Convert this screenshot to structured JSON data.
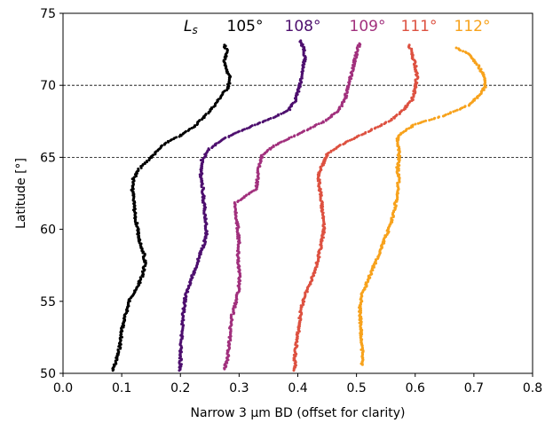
{
  "chart_data": {
    "type": "scatter",
    "xlabel": "Narrow 3 µm BD (offset for clarity)",
    "ylabel": "Latitude [°]",
    "xlim": [
      0.0,
      0.8
    ],
    "ylim": [
      50,
      75
    ],
    "x_ticks": [
      "0.0",
      "0.1",
      "0.2",
      "0.3",
      "0.4",
      "0.5",
      "0.6",
      "0.7",
      "0.8"
    ],
    "y_ticks": [
      "50",
      "55",
      "60",
      "65",
      "70",
      "75"
    ],
    "reference_lines": [
      65,
      70
    ],
    "legend_prefix": "Ls",
    "series": [
      {
        "name": "105°",
        "color": "#000000",
        "points": [
          [
            0.085,
            50.2
          ],
          [
            0.09,
            50.8
          ],
          [
            0.095,
            51.5
          ],
          [
            0.098,
            52.3
          ],
          [
            0.1,
            53.0
          ],
          [
            0.105,
            53.8
          ],
          [
            0.11,
            54.6
          ],
          [
            0.115,
            55.3
          ],
          [
            0.125,
            55.8
          ],
          [
            0.13,
            56.3
          ],
          [
            0.135,
            56.8
          ],
          [
            0.14,
            57.6
          ],
          [
            0.138,
            58.3
          ],
          [
            0.132,
            59.0
          ],
          [
            0.128,
            59.8
          ],
          [
            0.125,
            60.5
          ],
          [
            0.122,
            61.2
          ],
          [
            0.12,
            62.0
          ],
          [
            0.118,
            62.8
          ],
          [
            0.12,
            63.5
          ],
          [
            0.13,
            64.2
          ],
          [
            0.145,
            64.8
          ],
          [
            0.16,
            65.4
          ],
          [
            0.175,
            66.0
          ],
          [
            0.2,
            66.5
          ],
          [
            0.225,
            67.2
          ],
          [
            0.245,
            68.0
          ],
          [
            0.26,
            68.7
          ],
          [
            0.27,
            69.3
          ],
          [
            0.28,
            69.8
          ],
          [
            0.285,
            70.4
          ],
          [
            0.28,
            71.0
          ],
          [
            0.275,
            71.6
          ],
          [
            0.28,
            72.3
          ],
          [
            0.275,
            72.8
          ]
        ]
      },
      {
        "name": "108°",
        "color": "#4d0f6e",
        "points": [
          [
            0.2,
            50.2
          ],
          [
            0.2,
            51.2
          ],
          [
            0.202,
            52.2
          ],
          [
            0.203,
            53.2
          ],
          [
            0.205,
            54.2
          ],
          [
            0.208,
            55.2
          ],
          [
            0.215,
            56.2
          ],
          [
            0.225,
            57.2
          ],
          [
            0.233,
            58.2
          ],
          [
            0.24,
            59.0
          ],
          [
            0.245,
            59.8
          ],
          [
            0.243,
            60.8
          ],
          [
            0.24,
            61.8
          ],
          [
            0.238,
            62.8
          ],
          [
            0.235,
            63.8
          ],
          [
            0.237,
            64.8
          ],
          [
            0.25,
            65.6
          ],
          [
            0.27,
            66.2
          ],
          [
            0.3,
            66.8
          ],
          [
            0.33,
            67.3
          ],
          [
            0.36,
            67.8
          ],
          [
            0.385,
            68.3
          ],
          [
            0.395,
            68.9
          ],
          [
            0.4,
            69.5
          ],
          [
            0.405,
            70.2
          ],
          [
            0.408,
            71.0
          ],
          [
            0.412,
            71.8
          ],
          [
            0.41,
            72.5
          ],
          [
            0.405,
            73.1
          ]
        ]
      },
      {
        "name": "109°",
        "color": "#a1307d",
        "points": [
          [
            0.275,
            50.3
          ],
          [
            0.28,
            51.0
          ],
          [
            0.283,
            52.0
          ],
          [
            0.285,
            53.0
          ],
          [
            0.288,
            54.0
          ],
          [
            0.295,
            55.0
          ],
          [
            0.3,
            56.0
          ],
          [
            0.3,
            57.0
          ],
          [
            0.298,
            58.0
          ],
          [
            0.3,
            59.0
          ],
          [
            0.298,
            60.0
          ],
          [
            0.295,
            61.0
          ],
          [
            0.292,
            61.8
          ],
          [
            0.33,
            62.8
          ],
          [
            0.332,
            63.8
          ],
          [
            0.335,
            64.6
          ],
          [
            0.34,
            65.2
          ],
          [
            0.36,
            65.8
          ],
          [
            0.39,
            66.4
          ],
          [
            0.42,
            67.0
          ],
          [
            0.45,
            67.6
          ],
          [
            0.47,
            68.3
          ],
          [
            0.48,
            69.0
          ],
          [
            0.485,
            69.8
          ],
          [
            0.49,
            70.6
          ],
          [
            0.495,
            71.4
          ],
          [
            0.5,
            72.2
          ],
          [
            0.505,
            72.9
          ]
        ]
      },
      {
        "name": "111°",
        "color": "#dd5140",
        "points": [
          [
            0.395,
            50.2
          ],
          [
            0.395,
            51.2
          ],
          [
            0.398,
            52.2
          ],
          [
            0.402,
            53.2
          ],
          [
            0.405,
            54.2
          ],
          [
            0.41,
            55.2
          ],
          [
            0.42,
            56.2
          ],
          [
            0.428,
            57.0
          ],
          [
            0.435,
            58.0
          ],
          [
            0.44,
            59.0
          ],
          [
            0.445,
            60.0
          ],
          [
            0.443,
            61.0
          ],
          [
            0.44,
            62.0
          ],
          [
            0.437,
            63.0
          ],
          [
            0.435,
            63.8
          ],
          [
            0.45,
            65.2
          ],
          [
            0.47,
            65.8
          ],
          [
            0.5,
            66.4
          ],
          [
            0.53,
            67.0
          ],
          [
            0.56,
            67.6
          ],
          [
            0.58,
            68.3
          ],
          [
            0.595,
            69.0
          ],
          [
            0.6,
            69.8
          ],
          [
            0.603,
            70.6
          ],
          [
            0.6,
            71.4
          ],
          [
            0.595,
            72.1
          ],
          [
            0.59,
            72.8
          ]
        ]
      },
      {
        "name": "112°",
        "color": "#f7a21c",
        "points": [
          [
            0.51,
            50.6
          ],
          [
            0.51,
            51.5
          ],
          [
            0.508,
            52.5
          ],
          [
            0.507,
            53.5
          ],
          [
            0.506,
            54.5
          ],
          [
            0.51,
            55.5
          ],
          [
            0.52,
            56.5
          ],
          [
            0.53,
            57.5
          ],
          [
            0.54,
            58.5
          ],
          [
            0.55,
            59.5
          ],
          [
            0.56,
            60.5
          ],
          [
            0.565,
            61.5
          ],
          [
            0.57,
            62.5
          ],
          [
            0.572,
            63.5
          ],
          [
            0.57,
            64.3
          ],
          [
            0.573,
            64.8
          ],
          [
            0.57,
            66.5
          ],
          [
            0.6,
            67.3
          ],
          [
            0.65,
            67.9
          ],
          [
            0.69,
            68.6
          ],
          [
            0.71,
            69.3
          ],
          [
            0.72,
            70.0
          ],
          [
            0.715,
            70.8
          ],
          [
            0.705,
            71.5
          ],
          [
            0.69,
            72.2
          ],
          [
            0.67,
            72.6
          ]
        ]
      }
    ]
  }
}
